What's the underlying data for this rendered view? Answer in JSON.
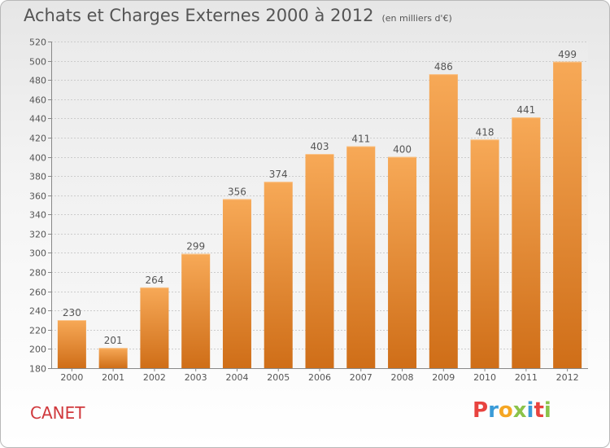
{
  "header": {
    "title": "Achats et Charges Externes 2000 à 2012",
    "subtitle": "(en milliers d'€)"
  },
  "footer": {
    "commune": "CANET",
    "brand_letters": [
      "P",
      "r",
      "o",
      "x",
      "i",
      "t",
      "i"
    ],
    "brand_colors": [
      "#e8433f",
      "#3a9bd8",
      "#f5a623",
      "#8bc34a",
      "#3a9bd8",
      "#e8433f",
      "#8bc34a"
    ]
  },
  "colors": {
    "bar_top": "#f7a957",
    "bar_bottom": "#cf6e18",
    "grid": "#cccccc",
    "text": "#555555"
  },
  "chart_data": {
    "type": "bar",
    "categories": [
      "2000",
      "2001",
      "2002",
      "2003",
      "2004",
      "2005",
      "2006",
      "2007",
      "2008",
      "2009",
      "2010",
      "2011",
      "2012"
    ],
    "values": [
      230,
      201,
      264,
      299,
      356,
      374,
      403,
      411,
      400,
      486,
      418,
      441,
      499
    ],
    "data_labels": [
      "230",
      "201",
      "264",
      "299",
      "356",
      "374",
      "403",
      "411",
      "400",
      "486",
      "418",
      "441",
      "499"
    ],
    "ylim": [
      180,
      520
    ],
    "yticks": [
      180,
      200,
      220,
      240,
      260,
      280,
      300,
      320,
      340,
      360,
      380,
      400,
      420,
      440,
      460,
      480,
      500,
      520
    ],
    "grid": true,
    "legend": "none"
  }
}
